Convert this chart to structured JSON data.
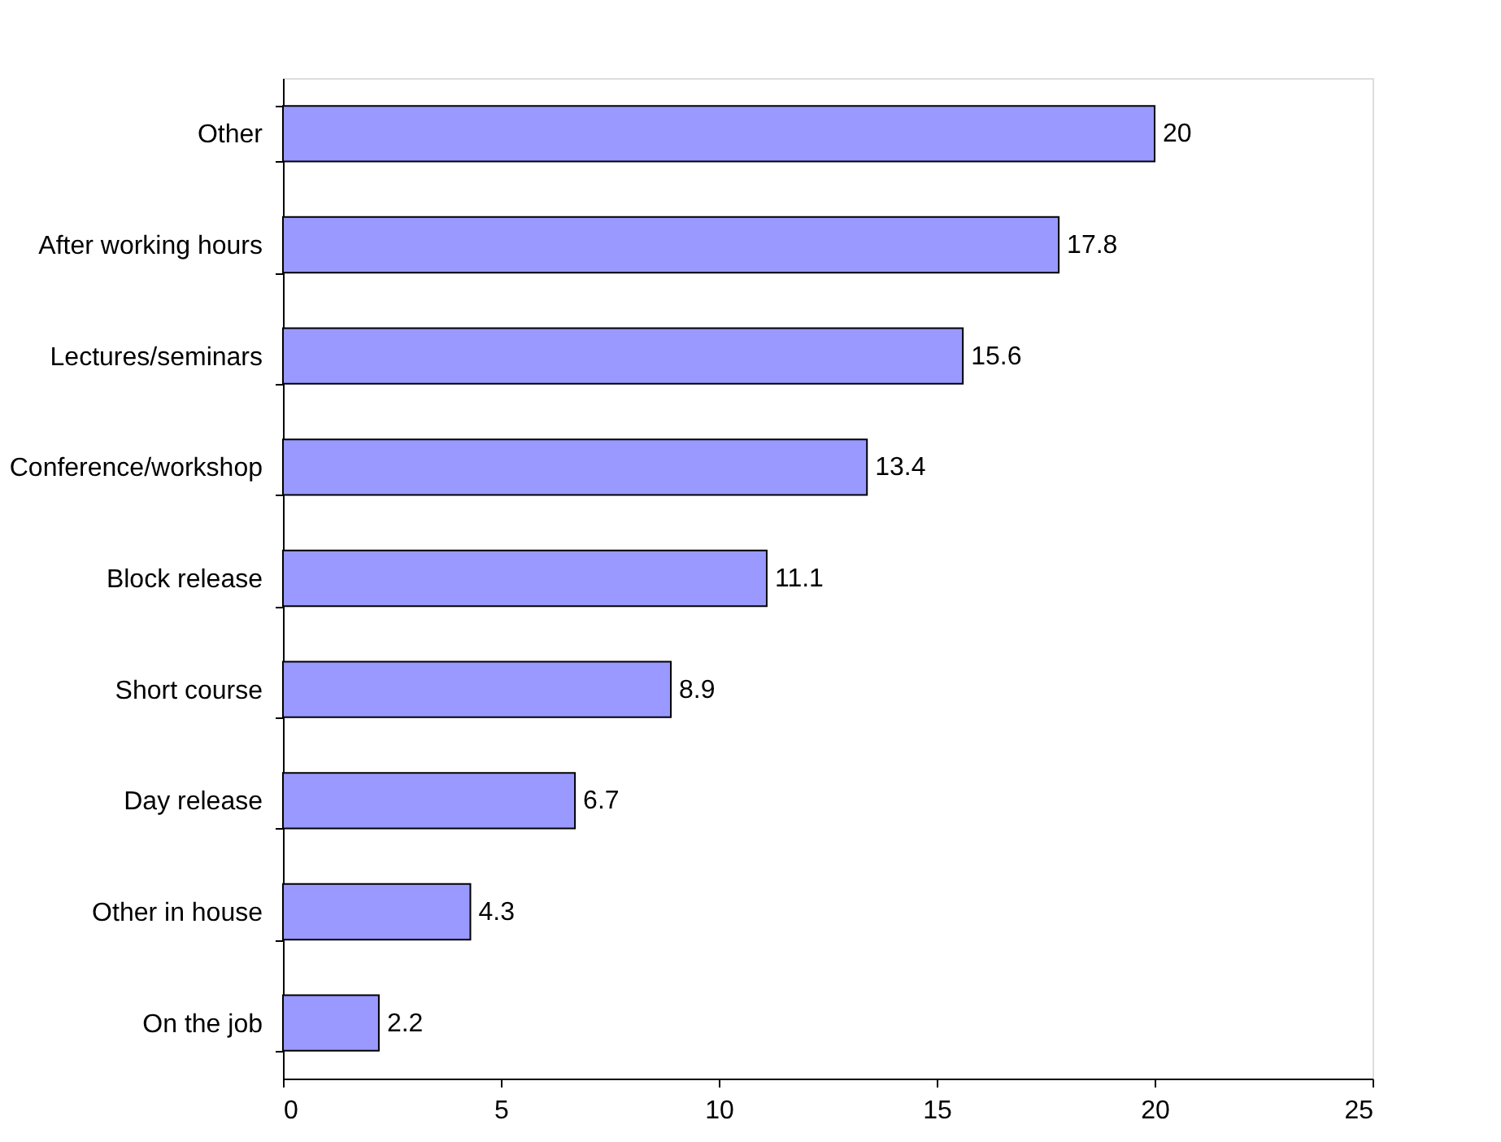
{
  "chart_data": {
    "type": "bar",
    "orientation": "horizontal",
    "categories": [
      "Other",
      "After working hours",
      "Lectures/seminars",
      "Conference/workshop",
      "Block release",
      "Short course",
      "Day release",
      "Other in house",
      "On the job"
    ],
    "values": [
      20,
      17.8,
      15.6,
      13.4,
      11.1,
      8.9,
      6.7,
      4.3,
      2.2
    ],
    "color": "#9999ff",
    "xlim": [
      0,
      25
    ],
    "xticks": [
      0,
      5,
      10,
      15,
      20,
      25
    ],
    "data_labels": true
  }
}
